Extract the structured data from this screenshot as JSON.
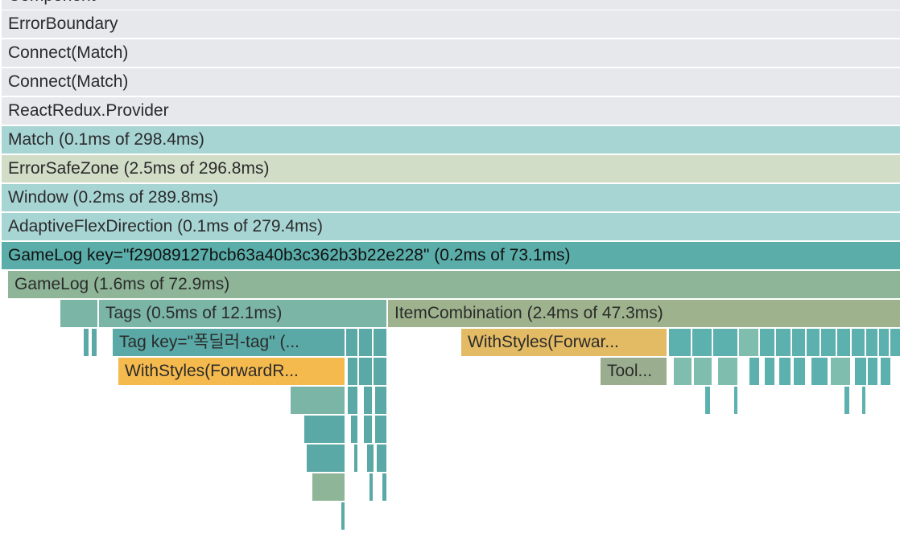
{
  "flamegraph": {
    "colors": {
      "gray": "#e6e8ec",
      "cyan_light": "#a7d5d4",
      "beige_light": "#d2ddc8",
      "teal_selected": "#5aada9",
      "sage": "#8eb597",
      "teal_mid": "#7ab5a5",
      "teal_dark": "#5aa9a6",
      "olive": "#9eb38d",
      "amber": "#e3bb64",
      "orange": "#f5ba4e",
      "gray_green": "#9aae8f",
      "teal_small": "#5cb0ad",
      "mint": "#7fbeae"
    },
    "rows": [
      {
        "label": "Component",
        "color": "gray"
      },
      {
        "label": "ErrorBoundary",
        "color": "gray"
      },
      {
        "label": "Connect(Match)",
        "color": "gray"
      },
      {
        "label": "Connect(Match)",
        "color": "gray"
      },
      {
        "label": "ReactRedux.Provider",
        "color": "gray"
      },
      {
        "label": "Match (0.1ms of 298.4ms)",
        "color": "cyan_light"
      },
      {
        "label": "ErrorSafeZone (2.5ms of 296.8ms)",
        "color": "beige_light"
      },
      {
        "label": "Window (0.2ms of 289.8ms)",
        "color": "cyan_light"
      },
      {
        "label": "AdaptiveFlexDirection (0.1ms of 279.4ms)",
        "color": "cyan_light"
      },
      {
        "label": "GameLog key=\"f29089127bcb63a40b3c362b3b22e228\" (0.2ms of 73.1ms)",
        "color": "teal_selected"
      },
      {
        "label": "GameLog (1.6ms of 72.9ms)",
        "color": "sage"
      }
    ],
    "nodes": {
      "tags": {
        "label": "Tags (0.5ms of 12.1ms)",
        "color": "teal_mid"
      },
      "item_combination": {
        "label": "ItemCombination (2.4ms of 47.3ms)",
        "color": "olive"
      },
      "tag_key": {
        "label": "Tag key=\"폭딜러-tag\" (...",
        "color": "teal_dark"
      },
      "withstyles_right": {
        "label": "WithStyles(Forwar...",
        "color": "amber"
      },
      "withstyles_left": {
        "label": "WithStyles(ForwardR...",
        "color": "orange"
      },
      "tooltip": {
        "label": "Tool...",
        "color": "gray_green"
      }
    }
  }
}
